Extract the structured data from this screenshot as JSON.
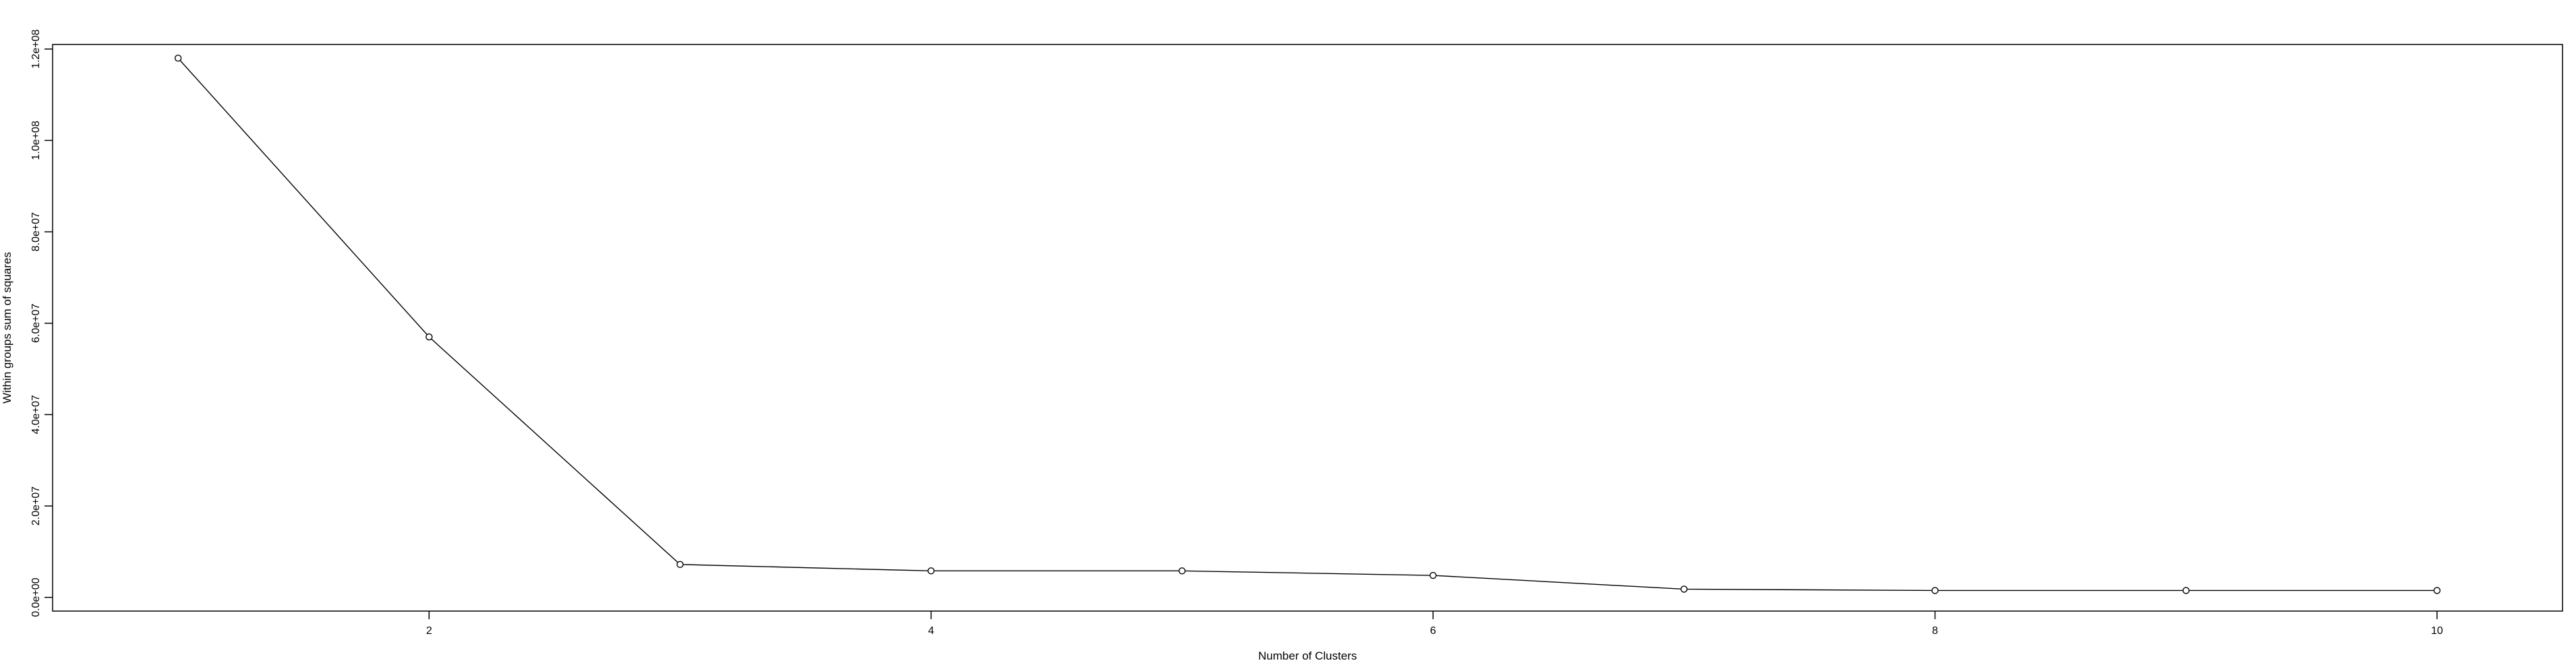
{
  "chart_data": {
    "type": "line",
    "title": "",
    "xlabel": "Number of Clusters",
    "ylabel": "Within groups sum of squares",
    "x": [
      1,
      2,
      3,
      4,
      5,
      6,
      7,
      8,
      9,
      10
    ],
    "series": [
      {
        "values": [
          118000000,
          57000000,
          7200000,
          5800000,
          5800000,
          4800000,
          1800000,
          1500000,
          1500000,
          1500000
        ],
        "color": "#000000",
        "marker": "open-circle"
      }
    ],
    "xlim": [
      0.5,
      10.5
    ],
    "ylim": [
      -3000000,
      121000000
    ],
    "xticks": [
      2,
      4,
      6,
      8,
      10
    ],
    "xtick_labels": [
      "2",
      "4",
      "6",
      "8",
      "10"
    ],
    "yticks": [
      0,
      20000000,
      40000000,
      60000000,
      80000000,
      100000000,
      120000000
    ],
    "ytick_labels": [
      "0.0e+00",
      "2.0e+07",
      "4.0e+07",
      "6.0e+07",
      "8.0e+07",
      "1.0e+08",
      "1.2e+08"
    ],
    "grid": false,
    "legend": "none"
  }
}
